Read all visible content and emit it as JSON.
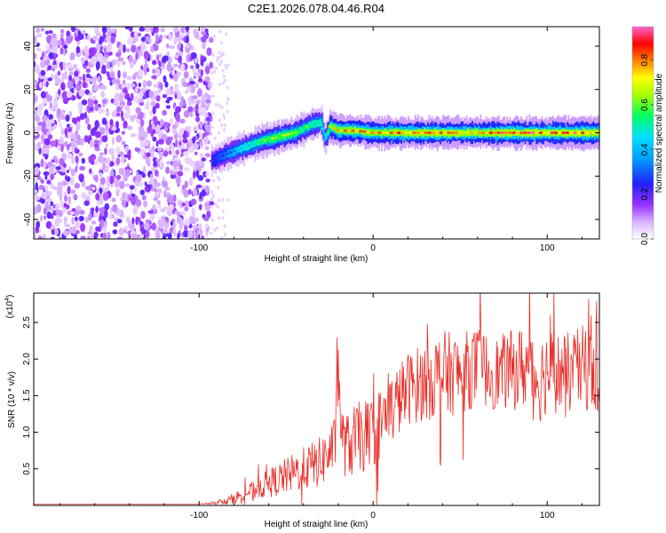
{
  "figure_title": "C2E1.2026.078.04.46.R04",
  "chart_data": [
    {
      "type": "heatmap",
      "title": "C2E1.2026.078.04.46.R04",
      "xlabel": "Height of straight line (km)",
      "ylabel": "Frequency (Hz)",
      "xlim": [
        -195,
        130
      ],
      "ylim": [
        -49,
        49
      ],
      "x_ticks": [
        -100,
        0,
        100
      ],
      "x_tick_labels": [
        "-100",
        "0",
        "100"
      ],
      "y_ticks": [
        -40,
        -20,
        0,
        20,
        40
      ],
      "y_tick_labels": [
        "-40",
        "-20",
        "0",
        "20",
        "40"
      ],
      "noise_region_x": [
        -195,
        -93
      ],
      "peak_track": {
        "x": [
          -93,
          -85,
          -75,
          -65,
          -55,
          -45,
          -40,
          -35,
          -30,
          -28,
          -25,
          -20,
          -10,
          0,
          10,
          20,
          40,
          60,
          80,
          100,
          120,
          130
        ],
        "freq": [
          -13,
          -10,
          -7,
          -4,
          -2,
          0,
          2,
          4,
          5,
          -3,
          3,
          1,
          1,
          0,
          0,
          0,
          0,
          0,
          0,
          0,
          0,
          0
        ],
        "amplitude": [
          0.25,
          0.35,
          0.5,
          0.6,
          0.75,
          0.7,
          0.65,
          0.6,
          0.55,
          0.4,
          0.8,
          0.85,
          0.9,
          0.85,
          0.9,
          0.92,
          0.95,
          0.9,
          0.95,
          0.95,
          0.95,
          0.9
        ]
      },
      "colorbar": {
        "label": "Normalized spectral amplitude",
        "range": [
          0.0,
          0.95
        ],
        "ticks": [
          0.0,
          0.2,
          0.4,
          0.6,
          0.8
        ],
        "tick_labels": [
          "0.0",
          "0.2",
          "0.4",
          "0.6",
          "0.8"
        ],
        "colors": [
          "#ffffff",
          "#9933ff",
          "#2020ff",
          "#00e0ff",
          "#00ff60",
          "#ffff00",
          "#ff8000",
          "#ff0000",
          "#ff66cc"
        ]
      }
    },
    {
      "type": "line",
      "xlabel": "Height of straight line (km)",
      "ylabel": "SNR (10 * v/v)",
      "y_multiplier": "(x10",
      "y_multiplier_exp": "4",
      "y_multiplier_close": ")",
      "xlim": [
        -195,
        130
      ],
      "ylim": [
        0,
        2.9
      ],
      "x_ticks": [
        -100,
        0,
        100
      ],
      "x_tick_labels": [
        "-100",
        "0",
        "100"
      ],
      "y_ticks": [
        0.5,
        1.0,
        1.5,
        2.0,
        2.5
      ],
      "y_tick_labels": [
        "0.5",
        "1.0",
        "1.5",
        "2.0",
        "2.5"
      ],
      "series": [
        {
          "name": "SNR",
          "color": "#e8302a",
          "x": [
            -195,
            -150,
            -100,
            -85,
            -80,
            -70,
            -60,
            -50,
            -40,
            -30,
            -22,
            -20,
            -18,
            -15,
            -10,
            -5,
            0,
            10,
            20,
            30,
            40,
            50,
            60,
            70,
            80,
            90,
            95,
            100,
            110,
            120,
            125,
            130
          ],
          "mean": [
            0.02,
            0.02,
            0.02,
            0.05,
            0.1,
            0.2,
            0.3,
            0.4,
            0.5,
            0.6,
            0.8,
            1.9,
            0.9,
            0.8,
            0.9,
            0.95,
            1.0,
            1.3,
            1.6,
            1.7,
            1.8,
            1.8,
            1.9,
            1.8,
            1.85,
            1.9,
            1.7,
            1.85,
            1.8,
            1.85,
            2.0,
            1.8
          ],
          "spread": [
            0.0,
            0.0,
            0.0,
            0.04,
            0.08,
            0.12,
            0.2,
            0.25,
            0.3,
            0.35,
            0.4,
            0.5,
            0.45,
            0.45,
            0.5,
            0.5,
            0.5,
            0.5,
            0.5,
            0.55,
            0.6,
            0.55,
            0.55,
            0.5,
            0.55,
            0.6,
            0.6,
            0.6,
            0.55,
            0.6,
            0.7,
            0.6
          ]
        }
      ]
    }
  ]
}
